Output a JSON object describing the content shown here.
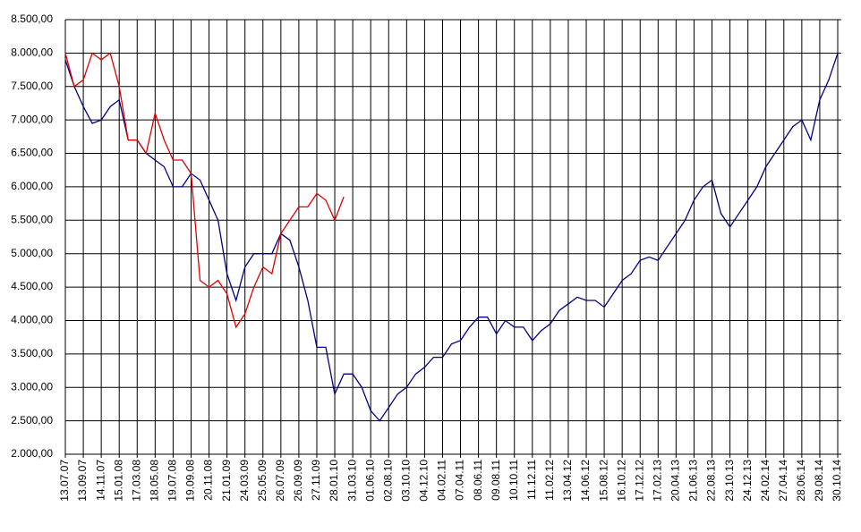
{
  "chart_data": {
    "type": "line",
    "categories": [
      "13.07.07",
      null,
      "13.09.07",
      null,
      "14.11.07",
      null,
      "15.01.08",
      null,
      "17.03.08",
      null,
      "18.05.08",
      null,
      "19.07.08",
      null,
      "19.09.08",
      null,
      "20.11.08",
      null,
      "21.01.09",
      null,
      "24.03.09",
      null,
      "25.05.09",
      null,
      "26.07.09",
      null,
      "26.09.09",
      null,
      "27.11.09",
      null,
      "28.01.10",
      null,
      "31.03.10",
      null,
      "01.06.10",
      null,
      "02.08.10",
      null,
      "03.10.10",
      null,
      "04.12.10",
      null,
      "04.02.11",
      null,
      "07.04.11",
      null,
      "08.06.11",
      null,
      "09.08.11",
      null,
      "10.10.11",
      null,
      "11.12.11",
      null,
      "11.02.12",
      null,
      "13.04.12",
      null,
      "14.06.12",
      null,
      "15.08.12",
      null,
      "16.10.12",
      null,
      "17.12.12",
      null,
      "17.02.13",
      null,
      "20.04.13",
      null,
      "21.06.13",
      null,
      "22.08.13",
      null,
      "23.10.13",
      null,
      "24.12.13",
      null,
      "24.02.14",
      null,
      "27.04.14",
      null,
      "28.06.14",
      null,
      "29.08.14",
      null,
      "30.10.14"
    ],
    "series": [
      {
        "color": "#000080",
        "values": [
          7900,
          7500,
          7200,
          6950,
          7000,
          7200,
          7300,
          6700,
          6700,
          6500,
          6400,
          6300,
          6000,
          6000,
          6200,
          6100,
          5800,
          5500,
          4700,
          4300,
          4800,
          5000,
          5000,
          5000,
          5300,
          5200,
          4800,
          4300,
          3600,
          3600,
          2900,
          3200,
          3200,
          3000,
          2650,
          2500,
          2700,
          2900,
          3000,
          3200,
          3300,
          3450,
          3450,
          3650,
          3700,
          3900,
          4050,
          4050,
          3800,
          4000,
          3900,
          3900,
          3700,
          3850,
          3950,
          4150,
          4250,
          4350,
          4300,
          4300,
          4200,
          4400,
          4600,
          4700,
          4900,
          4950,
          4900,
          5100,
          5300,
          5500,
          5800,
          6000,
          6100,
          5600,
          5400,
          5600,
          5800,
          6000,
          6300,
          6500,
          6700,
          6900,
          7000,
          6700,
          7300,
          7600,
          8000
        ]
      },
      {
        "color": "#e00000",
        "values": [
          8000,
          7500,
          7600,
          8000,
          7900,
          8000,
          7500,
          6700,
          6700,
          6500,
          7100,
          6700,
          6400,
          6400,
          6200,
          4600,
          4500,
          4600,
          4400,
          3900,
          4100,
          4500,
          4800,
          4700,
          5300,
          5500,
          5700,
          5700,
          5900,
          5800,
          5500,
          5850,
          null,
          null,
          null,
          null,
          null,
          null,
          null,
          null,
          null,
          null,
          null,
          null,
          null,
          null,
          null,
          null,
          null,
          null,
          null,
          null,
          null,
          null,
          null,
          null,
          null,
          null,
          null,
          null,
          null,
          null,
          null,
          null,
          null,
          null,
          null,
          null,
          null,
          null,
          null,
          null,
          null,
          null,
          null,
          null,
          null,
          null,
          null,
          null,
          null,
          null,
          null,
          null,
          null,
          null,
          null
        ]
      }
    ],
    "ylim": [
      2000,
      8500
    ],
    "yticks": [
      {
        "value": 2000,
        "label": "2.000,00"
      },
      {
        "value": 2500,
        "label": "2.500,00"
      },
      {
        "value": 3000,
        "label": "3.000,00"
      },
      {
        "value": 3500,
        "label": "3.500,00"
      },
      {
        "value": 4000,
        "label": "4.000,00"
      },
      {
        "value": 4500,
        "label": "4.500,00"
      },
      {
        "value": 5000,
        "label": "5.000,00"
      },
      {
        "value": 5500,
        "label": "5.500,00"
      },
      {
        "value": 6000,
        "label": "6.000,00"
      },
      {
        "value": 6500,
        "label": "6.500,00"
      },
      {
        "value": 7000,
        "label": "7.000,00"
      },
      {
        "value": 7500,
        "label": "7.500,00"
      },
      {
        "value": 8000,
        "label": "8.000,00"
      },
      {
        "value": 8500,
        "label": "8.500,00"
      }
    ],
    "grid": true
  }
}
